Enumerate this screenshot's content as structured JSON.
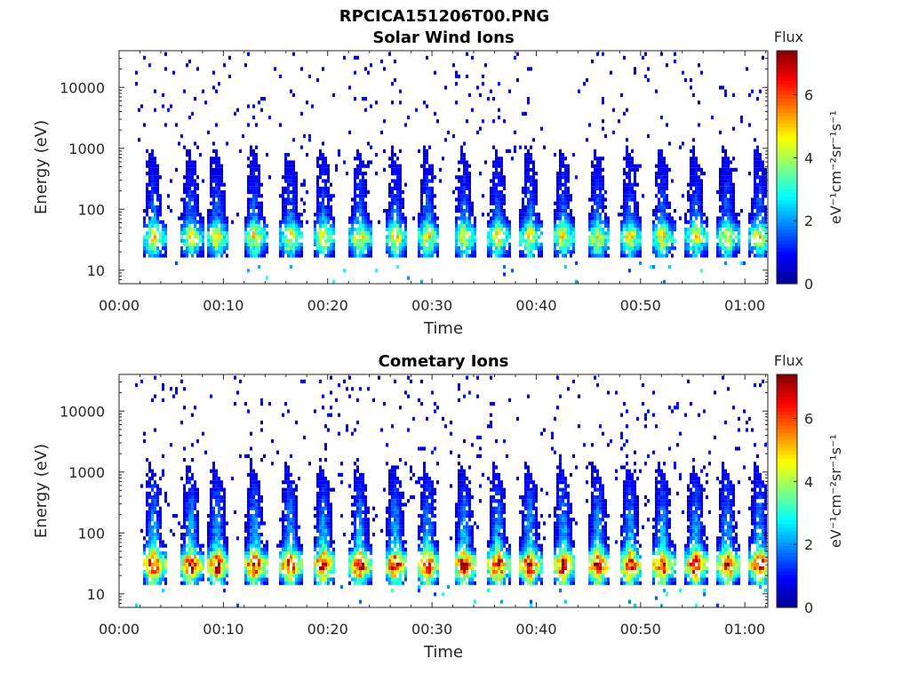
{
  "figure_title": "RPCICA151206T00.PNG",
  "colormap": [
    "#00008f",
    "#0000ff",
    "#0080ff",
    "#00ffff",
    "#80ff80",
    "#ffff00",
    "#ff8000",
    "#ff0000",
    "#800000"
  ],
  "chart_data": [
    {
      "type": "heatmap",
      "title": "Solar Wind Ions",
      "xlabel": "Time",
      "ylabel": "Energy (eV)",
      "x_ticks": [
        "00:00",
        "00:10",
        "00:20",
        "00:30",
        "00:40",
        "00:50",
        "01:00"
      ],
      "x_tick_minutes": [
        0,
        10,
        20,
        30,
        40,
        50,
        60
      ],
      "xlim_minutes": [
        0,
        62.2
      ],
      "y_ticks": [
        "10",
        "100",
        "1000",
        "10000"
      ],
      "y_tick_values": [
        10,
        100,
        1000,
        10000
      ],
      "ylim": [
        6,
        40000
      ],
      "yscale": "log",
      "colorbar": {
        "title": "Flux",
        "label": "eV⁻¹cm⁻²sr⁻¹s⁻¹",
        "ticks": [
          "0",
          "2",
          "4",
          "6"
        ],
        "tick_values": [
          0,
          2,
          4,
          6
        ],
        "range": [
          0,
          7.4
        ]
      },
      "sweep_start_minutes": [
        2.3,
        5.9,
        8.4,
        12.0,
        15.4,
        18.6,
        22.1,
        25.5,
        28.6,
        32.1,
        35.3,
        38.4,
        41.6,
        44.9,
        48.0,
        51.1,
        54.3,
        57.3,
        60.4
      ],
      "population": {
        "peak_energy": 35,
        "peak_flux": 4.6,
        "background_flux": 0.8,
        "high_energy_tail_to": 800
      }
    },
    {
      "type": "heatmap",
      "title": "Cometary Ions",
      "xlabel": "Time",
      "ylabel": "Energy (eV)",
      "x_ticks": [
        "00:00",
        "00:10",
        "00:20",
        "00:30",
        "00:40",
        "00:50",
        "01:00"
      ],
      "x_tick_minutes": [
        0,
        10,
        20,
        30,
        40,
        50,
        60
      ],
      "xlim_minutes": [
        0,
        62.2
      ],
      "y_ticks": [
        "10",
        "100",
        "1000",
        "10000"
      ],
      "y_tick_values": [
        10,
        100,
        1000,
        10000
      ],
      "ylim": [
        6,
        40000
      ],
      "yscale": "log",
      "colorbar": {
        "title": "Flux",
        "label": "eV⁻¹cm⁻²sr⁻¹s⁻¹",
        "ticks": [
          "0",
          "2",
          "4",
          "6"
        ],
        "tick_values": [
          0,
          2,
          4,
          6
        ],
        "range": [
          0,
          7.4
        ]
      },
      "sweep_start_minutes": [
        2.3,
        5.9,
        8.4,
        12.0,
        15.4,
        18.6,
        22.1,
        25.5,
        28.6,
        32.1,
        35.3,
        38.4,
        41.6,
        44.9,
        48.0,
        51.1,
        54.3,
        57.3,
        60.4
      ],
      "population": {
        "peak_energy": 30,
        "peak_flux": 6.6,
        "background_flux": 0.8,
        "high_energy_tail_to": 1000
      }
    }
  ]
}
